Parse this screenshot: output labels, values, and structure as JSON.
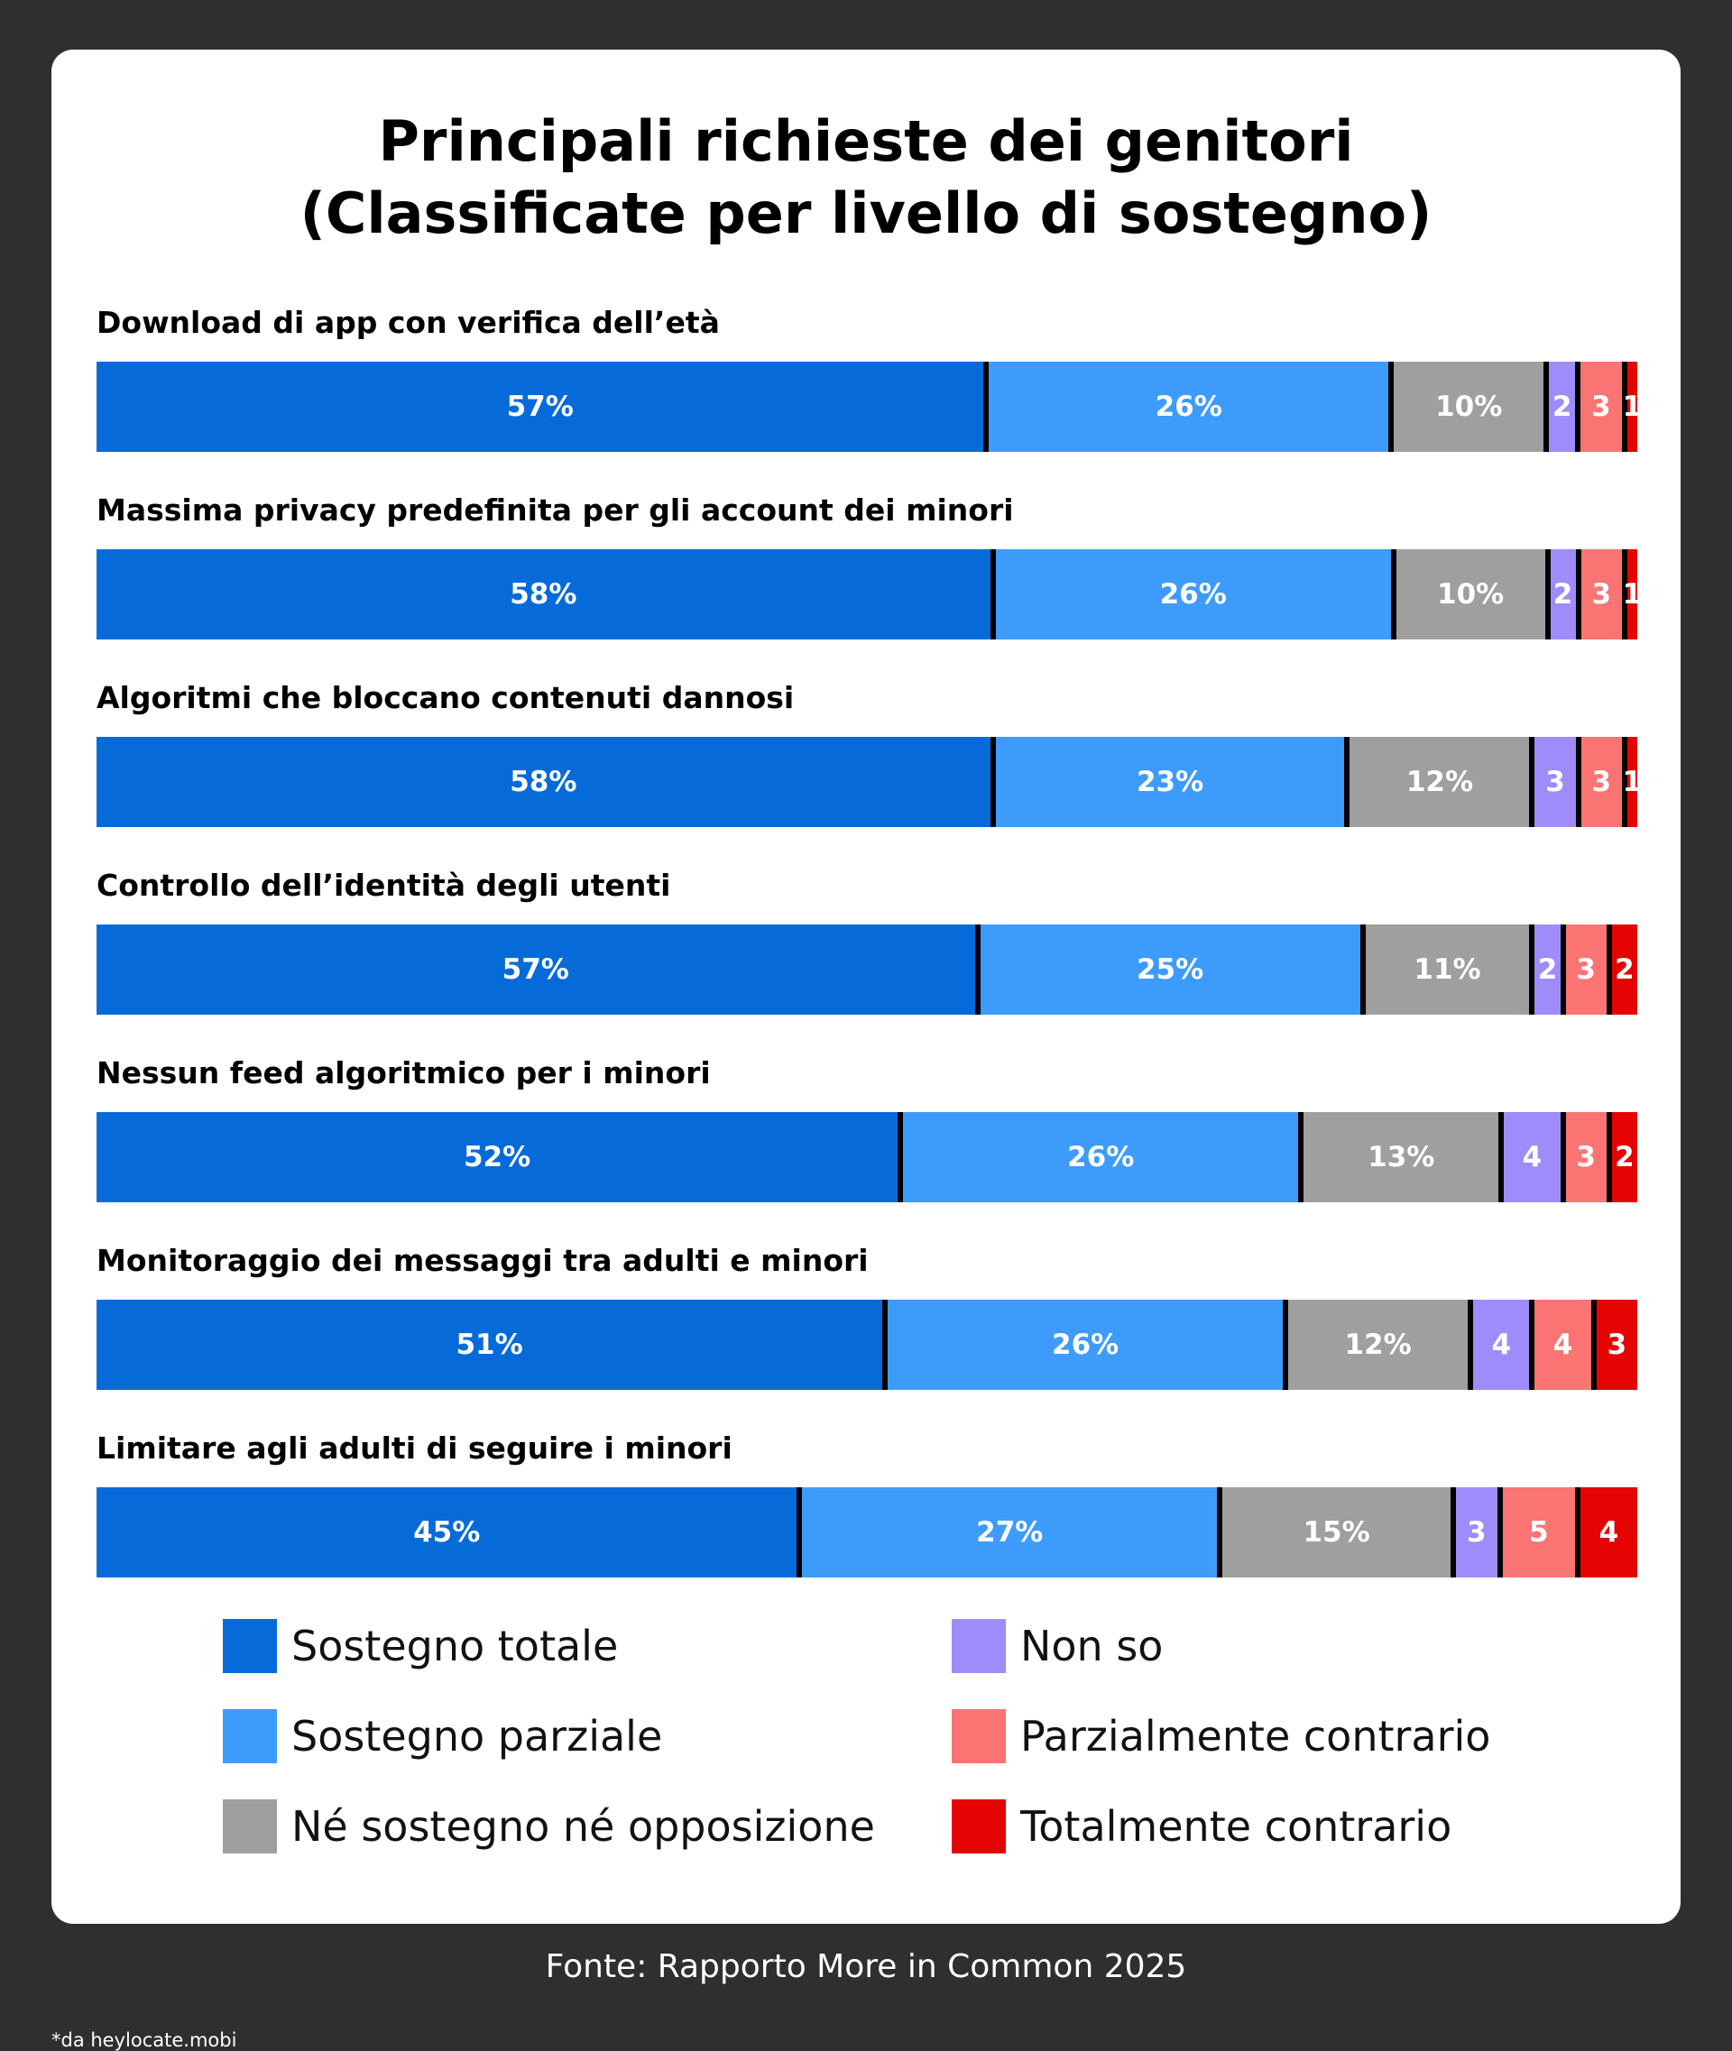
{
  "header": {
    "title_line1": "Principali richieste dei genitori",
    "title_line2": "(Classificate per livello di sostegno)"
  },
  "colors": {
    "sostegno_totale": "#066bd9",
    "sostegno_parziale": "#3d9bfb",
    "neutrale": "#9f9f9f",
    "non_so": "#a08bfb",
    "parzialmente_contrario": "#fa7474",
    "totalmente_contrario": "#e50303"
  },
  "chart_data": {
    "type": "bar",
    "orientation": "horizontal-stacked-100",
    "categories": [
      "Download di app con verifica dell’età",
      "Massima privacy predefinita per gli account dei minori",
      "Algoritmi che bloccano contenuti dannosi",
      "Controllo dell’identità degli utenti",
      "Nessun feed algoritmico per i minori",
      "Monitoraggio dei messaggi tra adulti e minori",
      "Limitare agli adulti di seguire i minori"
    ],
    "series": [
      {
        "name": "Sostegno totale",
        "color": "#066bd9",
        "values": [
          57,
          58,
          58,
          57,
          52,
          51,
          45
        ]
      },
      {
        "name": "Sostegno parziale",
        "color": "#3d9bfb",
        "values": [
          26,
          26,
          23,
          25,
          26,
          26,
          27
        ]
      },
      {
        "name": "Né sostegno né opposizione",
        "color": "#9f9f9f",
        "values": [
          10,
          10,
          12,
          11,
          13,
          12,
          15
        ]
      },
      {
        "name": "Non so",
        "color": "#a08bfb",
        "values": [
          2,
          2,
          3,
          2,
          4,
          4,
          3
        ]
      },
      {
        "name": "Parzialmente contrario",
        "color": "#fa7474",
        "values": [
          3,
          3,
          3,
          3,
          3,
          4,
          5
        ]
      },
      {
        "name": "Totalmente contrario",
        "color": "#e50303",
        "values": [
          1,
          1,
          1,
          2,
          2,
          3,
          4
        ]
      }
    ],
    "value_labels": [
      [
        "57%",
        "26%",
        "10%",
        "2",
        "3",
        "1"
      ],
      [
        "58%",
        "26%",
        "10%",
        "2",
        "3",
        "1"
      ],
      [
        "58%",
        "23%",
        "12%",
        "3",
        "3",
        "1"
      ],
      [
        "57%",
        "25%",
        "11%",
        "2",
        "3",
        "2"
      ],
      [
        "52%",
        "26%",
        "13%",
        "4",
        "3",
        "2"
      ],
      [
        "51%",
        "26%",
        "12%",
        "4",
        "4",
        "3"
      ],
      [
        "45%",
        "27%",
        "15%",
        "3",
        "5",
        "4"
      ]
    ],
    "legend_position": "bottom",
    "grid": false
  },
  "footer": {
    "source": "Fonte: Rapporto More in Common 2025",
    "credit": "*da heylocate.mobi"
  }
}
